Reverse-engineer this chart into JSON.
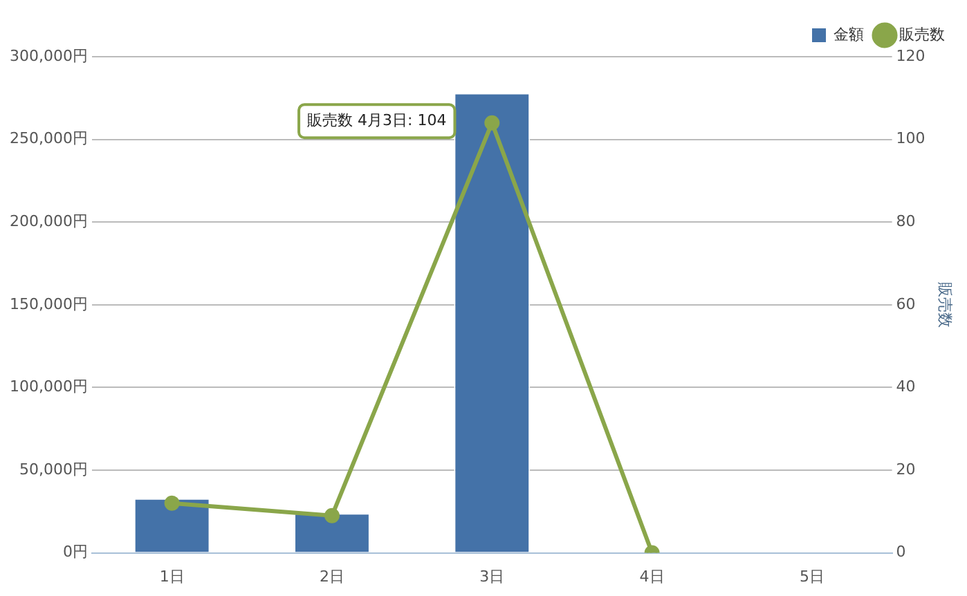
{
  "chart_data": {
    "type": "bar",
    "categories": [
      "1日",
      "2日",
      "3日",
      "4日",
      "5日"
    ],
    "series": [
      {
        "name": "金額",
        "color": "#4472a8",
        "values": [
          33000,
          24000,
          278000,
          0,
          0
        ]
      },
      {
        "name": "販売数",
        "type": "line",
        "axis": "y2",
        "color": "#8aa64a",
        "values": [
          12,
          9,
          104,
          0,
          null
        ]
      }
    ],
    "ylim": [
      0,
      300000
    ],
    "yticks": [
      {
        "value": 0,
        "label": "0円"
      },
      {
        "value": 50000,
        "label": "50,000円"
      },
      {
        "value": 100000,
        "label": "100,000円"
      },
      {
        "value": 150000,
        "label": "150,000円"
      },
      {
        "value": 200000,
        "label": "200,000円"
      },
      {
        "value": 250000,
        "label": "250,000円"
      },
      {
        "value": 300000,
        "label": "300,000円"
      }
    ],
    "y2lim": [
      0,
      120
    ],
    "y2ticks": [
      0,
      20,
      40,
      60,
      80,
      100,
      120
    ],
    "y2label": "販売数",
    "annotations": [
      "販売数 4月3日: 104"
    ],
    "grid": "y",
    "legend": "top right",
    "marker": "circle"
  }
}
